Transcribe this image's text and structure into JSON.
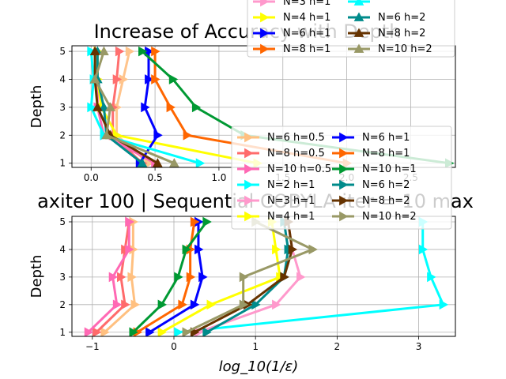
{
  "chart_data": [
    {
      "type": "line",
      "title": "Increase of Accuracy with Depth",
      "xlabel": "",
      "ylabel": "Depth",
      "xlim": [
        -0.15,
        2.85
      ],
      "ylim": [
        0.85,
        5.2
      ],
      "xticks": [
        0,
        0.5,
        1,
        1.5,
        2,
        2.5
      ],
      "xtick_labels": [
        "0.0",
        "0.5",
        "1.0",
        "1.5",
        "2.0",
        "2.5"
      ],
      "yticks": [
        1,
        2,
        3,
        4,
        5
      ],
      "ytick_labels": [
        "1",
        "2",
        "3",
        "4",
        "5"
      ],
      "grid": true,
      "marker": "mixed",
      "series": [
        {
          "name": "",
          "color": "#ffc48c",
          "marker": "tri-right",
          "x": [
            0.45,
            0.2,
            0.2,
            0.25,
            0.3
          ],
          "y": [
            1,
            2,
            3,
            4,
            5
          ]
        },
        {
          "name": "",
          "color": "#ff6f6f",
          "marker": "tri-right",
          "x": [
            0.4,
            0.17,
            0.17,
            0.2,
            0.22
          ],
          "y": [
            1,
            2,
            3,
            4,
            5
          ]
        },
        {
          "name": "",
          "color": "#ff69b4",
          "marker": "tri-right",
          "x": [
            0.5,
            0.1,
            0.05,
            0.05,
            0.05
          ],
          "y": [
            1,
            2,
            3,
            4,
            5
          ]
        },
        {
          "name": "N=4 h=1",
          "color": "#ffff00",
          "marker": "tri-right",
          "x": [
            1.3,
            0.2,
            0.08,
            0.05,
            0.05
          ],
          "y": [
            1,
            2,
            3,
            4,
            5
          ]
        },
        {
          "name": "N=6 h=1",
          "color": "#0000ff",
          "marker": "tri-right",
          "x": [
            0.38,
            0.52,
            0.42,
            0.45,
            0.45
          ],
          "y": [
            1,
            2,
            3,
            4,
            5
          ]
        },
        {
          "name": "N=8 h=1",
          "color": "#ff6600",
          "marker": "tri-right",
          "x": [
            2.0,
            0.75,
            0.62,
            0.5,
            0.5
          ],
          "y": [
            1,
            2,
            3,
            4,
            5
          ]
        },
        {
          "name": "",
          "color": "#00ffff",
          "marker": "tri-right",
          "x": [
            0.85,
            0.1,
            0.0,
            0.02,
            0.0
          ],
          "y": [
            1,
            2,
            3,
            4,
            5
          ]
        },
        {
          "name": "",
          "color": "#009933",
          "marker": "tri-right",
          "x": [
            2.8,
            1.2,
            0.82,
            0.64,
            0.4
          ],
          "y": [
            1,
            2,
            3,
            4,
            5
          ]
        },
        {
          "name": "N=6 h=2",
          "color": "#008b8b",
          "marker": "triangle",
          "x": [
            0.4,
            0.12,
            0.1,
            0.05,
            0.05
          ],
          "y": [
            1,
            2,
            3,
            4,
            5
          ]
        },
        {
          "name": "N=8 h=2",
          "color": "#663300",
          "marker": "triangle",
          "x": [
            0.52,
            0.15,
            0.05,
            0.03,
            0.03
          ],
          "y": [
            1,
            2,
            3,
            4,
            5
          ]
        },
        {
          "name": "N=10 h=2",
          "color": "#999966",
          "marker": "triangle",
          "x": [
            0.65,
            0.12,
            0.15,
            0.03,
            0.1
          ],
          "y": [
            1,
            2,
            3,
            4,
            5
          ]
        }
      ],
      "legend": {
        "placement": "top-right",
        "entries": [
          {
            "name": "N=3 h=1",
            "color": "#ff99cc",
            "marker": "tri-right"
          },
          {
            "name": "",
            "color": "#00ffff",
            "marker": "triangle"
          },
          {
            "name": "N=4 h=1",
            "color": "#ffff00",
            "marker": "tri-right"
          },
          {
            "name": "N=6 h=2",
            "color": "#008b8b",
            "marker": "triangle"
          },
          {
            "name": "N=6 h=1",
            "color": "#0000ff",
            "marker": "tri-right"
          },
          {
            "name": "N=8 h=2",
            "color": "#663300",
            "marker": "triangle"
          },
          {
            "name": "N=8 h=1",
            "color": "#ff6600",
            "marker": "tri-right"
          },
          {
            "name": "N=10 h=2",
            "color": "#999966",
            "marker": "triangle"
          }
        ]
      }
    },
    {
      "type": "line",
      "title": "axiter 100 | Sequential COBYLA iter = 10 max",
      "xlabel": "log_10(1/ε)",
      "ylabel": "Depth",
      "xlim": [
        -1.25,
        3.45
      ],
      "ylim": [
        0.85,
        5.2
      ],
      "xticks": [
        -1,
        0,
        1,
        2,
        3
      ],
      "xtick_labels": [
        "−1",
        "0",
        "1",
        "2",
        "3"
      ],
      "yticks": [
        1,
        2,
        3,
        4,
        5
      ],
      "ytick_labels": [
        "1",
        "2",
        "3",
        "4",
        "5"
      ],
      "grid": true,
      "series": [
        {
          "name": "N=6 h=0.5",
          "color": "#ffc080",
          "marker": "tri-right",
          "x": [
            -0.85,
            -0.48,
            -0.52,
            -0.5,
            -0.5
          ],
          "y": [
            1,
            2,
            3,
            4,
            5
          ]
        },
        {
          "name": "N=8 h=0.5",
          "color": "#ff6b6b",
          "marker": "tri-right",
          "x": [
            -0.95,
            -0.6,
            -0.65,
            -0.6,
            -0.55
          ],
          "y": [
            1,
            2,
            3,
            4,
            5
          ]
        },
        {
          "name": "N=10 h=0.5",
          "color": "#ff69b4",
          "marker": "tri-right",
          "x": [
            -1.05,
            -0.7,
            -0.75,
            -0.55,
            -0.55
          ],
          "y": [
            1,
            2,
            3,
            4,
            5
          ]
        },
        {
          "name": "N=2 h=1",
          "color": "#00ffff",
          "marker": "tri-right",
          "x": [
            0.05,
            3.3,
            3.15,
            3.05,
            3.05
          ],
          "y": [
            1,
            2,
            3,
            4,
            5
          ]
        },
        {
          "name": "N=3 h=1",
          "color": "#ff99cc",
          "marker": "tri-right",
          "x": [
            0.3,
            1.25,
            1.55,
            1.45,
            1.4
          ],
          "y": [
            1,
            2,
            3,
            4,
            5
          ]
        },
        {
          "name": "N=4 h=1",
          "color": "#ffff00",
          "marker": "tri-right",
          "x": [
            -0.15,
            0.45,
            1.3,
            1.25,
            1.2
          ],
          "y": [
            1,
            2,
            3,
            4,
            5
          ]
        },
        {
          "name": "N=6 h=1",
          "color": "#0000ff",
          "marker": "tri-right",
          "x": [
            -0.3,
            0.25,
            0.35,
            0.3,
            0.3
          ],
          "y": [
            1,
            2,
            3,
            4,
            5
          ]
        },
        {
          "name": "N=8 h=1",
          "color": "#ff6600",
          "marker": "tri-right",
          "x": [
            -0.45,
            0.1,
            0.2,
            0.2,
            0.25
          ],
          "y": [
            1,
            2,
            3,
            4,
            5
          ]
        },
        {
          "name": "N=10 h=1",
          "color": "#009933",
          "marker": "tri-right",
          "x": [
            -0.5,
            -0.15,
            0.05,
            0.15,
            0.4
          ],
          "y": [
            1,
            2,
            3,
            4,
            5
          ]
        },
        {
          "name": "N=6 h=2",
          "color": "#008b8b",
          "marker": "tri-right",
          "x": [
            0.4,
            1.0,
            1.35,
            1.4,
            1.35
          ],
          "y": [
            1,
            2,
            3,
            4,
            5
          ]
        },
        {
          "name": "N=8 h=2",
          "color": "#663300",
          "marker": "tri-right",
          "x": [
            0.25,
            0.9,
            1.35,
            1.45,
            1.4
          ],
          "y": [
            1,
            2,
            3,
            4,
            5
          ]
        },
        {
          "name": "N=10 h=2",
          "color": "#999966",
          "marker": "tri-right",
          "x": [
            0.15,
            0.85,
            0.85,
            1.7,
            1.0
          ],
          "y": [
            1,
            2,
            3,
            4,
            5
          ]
        }
      ],
      "legend": {
        "placement": "center-right",
        "columns": 2
      }
    }
  ]
}
